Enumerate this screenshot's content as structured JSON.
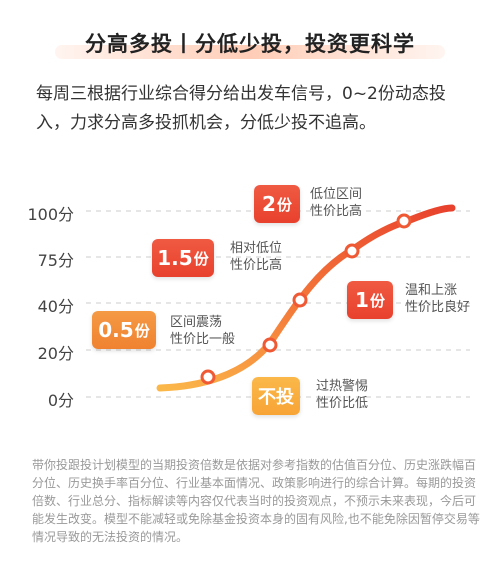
{
  "header": {
    "title": "分高多投丨分低少投，投资更科学"
  },
  "intro": "每周三根据行业综合得分给出发车信号，0~2份动态投入，力求分高多投抓机会，分低少投不追高。",
  "chart_data": {
    "type": "line",
    "y_ticks": [
      "100分",
      "75分",
      "40分",
      "20分",
      "0分"
    ],
    "ylim": [
      0,
      100
    ],
    "series": [
      {
        "values": [
          0,
          20,
          40,
          75,
          100
        ]
      }
    ],
    "tiers": [
      {
        "amount": "2",
        "unit": "份",
        "line1": "低位区间",
        "line2": "性价比高",
        "color": "#e8412d"
      },
      {
        "amount": "1.5",
        "unit": "份",
        "line1": "相对低位",
        "line2": "性价比高",
        "color": "#ef5a35"
      },
      {
        "amount": "1",
        "unit": "份",
        "line1": "温和上涨",
        "line2": "性价比良好",
        "color": "#ea4a30"
      },
      {
        "amount": "0.5",
        "unit": "份",
        "line1": "区间震荡",
        "line2": "性价比一般",
        "color": "#f39040"
      },
      {
        "amount": "不投",
        "unit": "",
        "line1": "过热警惕",
        "line2": "性价比低",
        "color": "#f7a435"
      }
    ]
  },
  "disclaimer": "带你投跟投计划模型的当期投资倍数是依据对参考指数的估值百分位、历史涨跌幅百分位、历史换手率百分位、行业基本面情况、政策影响进行的综合计算。每期的投资倍数、行业总分、指标解读等内容仅代表当时的投资观点，不预示未来表现，今后可能发生改变。模型不能减轻或免除基金投资本身的固有风险,也不能免除因暂停交易等情况导致的无法投资的情况。"
}
